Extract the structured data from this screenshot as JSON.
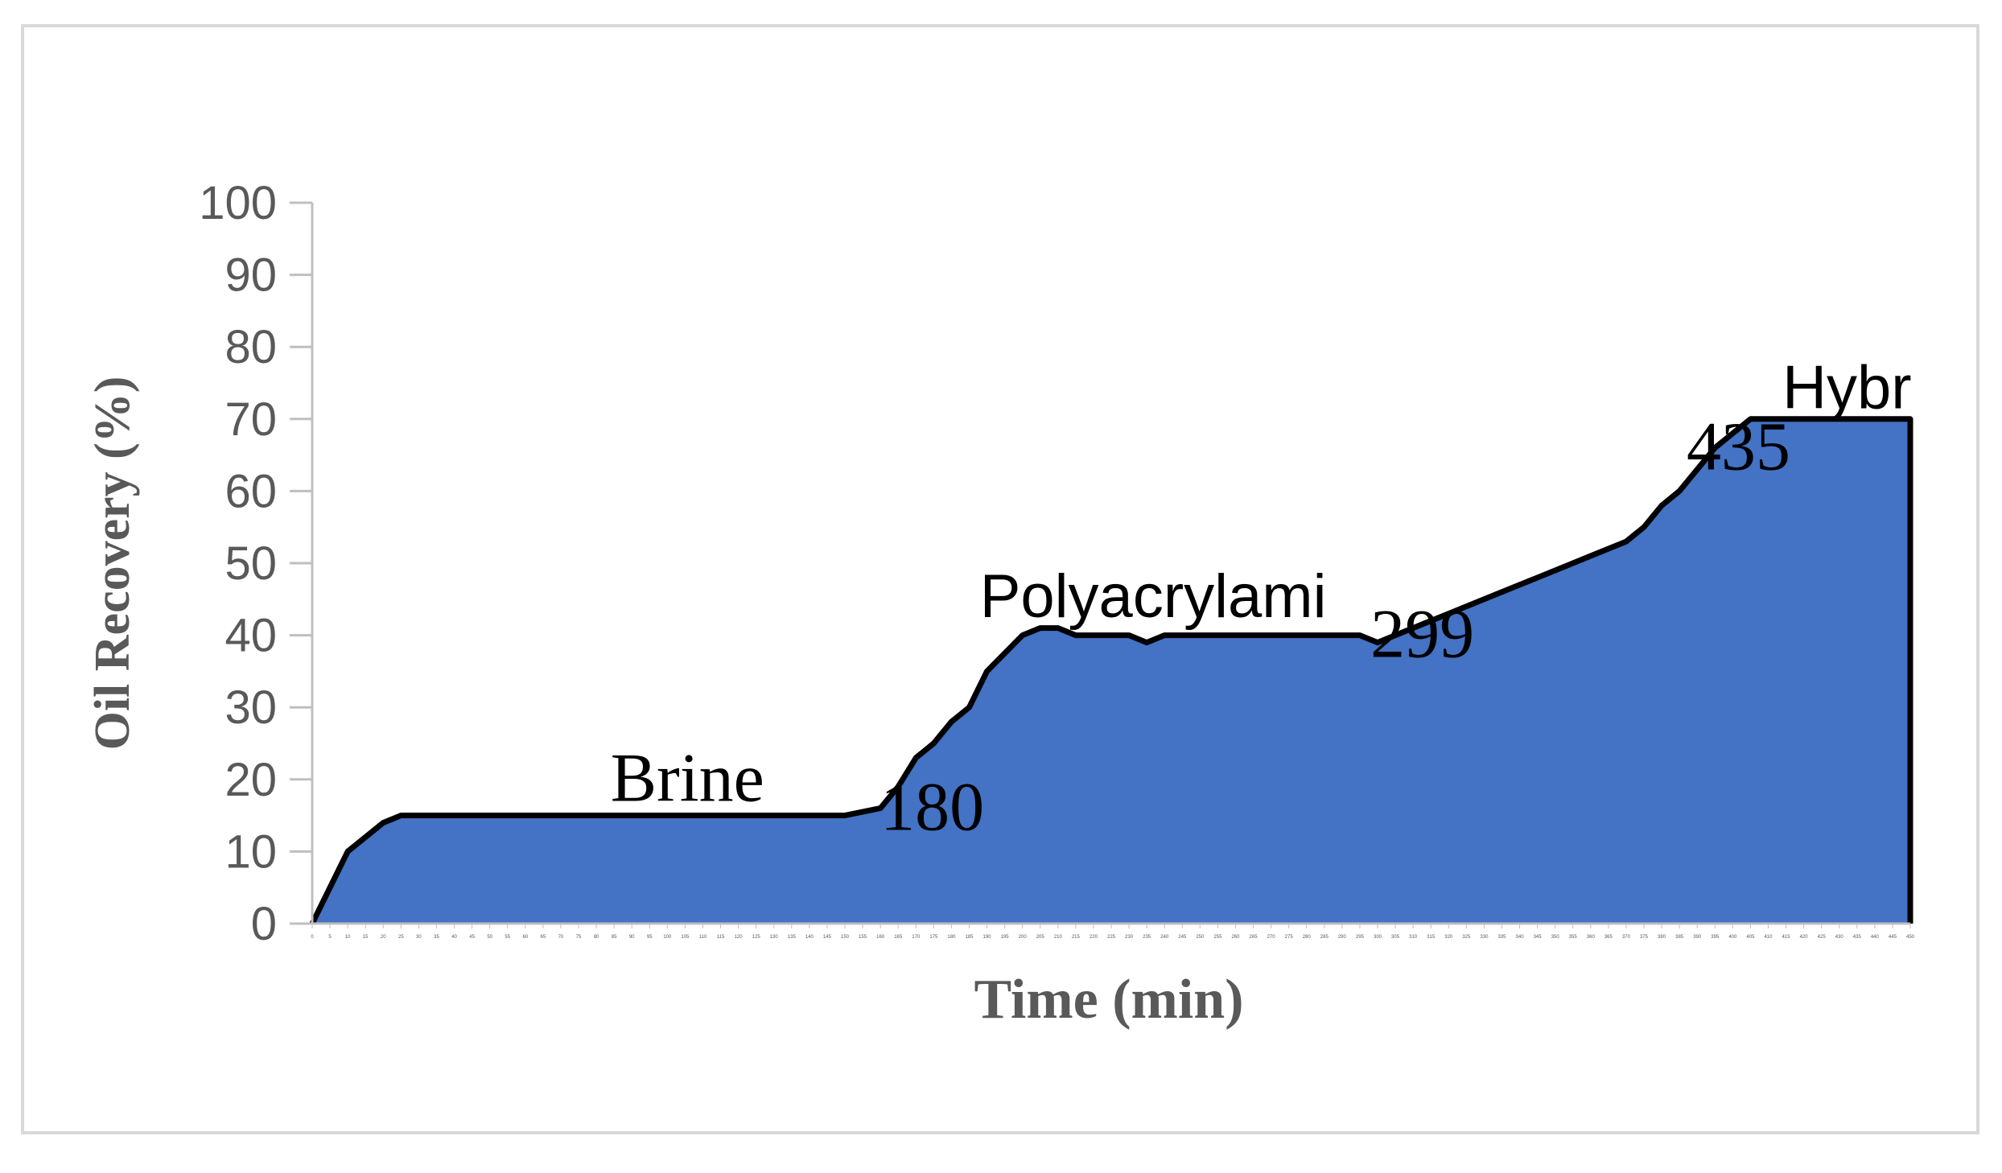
{
  "chart_data": {
    "type": "area",
    "title": "",
    "xlabel": "Time (min)",
    "ylabel": "Oil Recovery (%)",
    "xlim": [
      0,
      450
    ],
    "ylim": [
      0,
      100
    ],
    "yticks": [
      0,
      10,
      20,
      30,
      40,
      50,
      60,
      70,
      80,
      90,
      100
    ],
    "xtick_step": 5,
    "grid": false,
    "legend": "none",
    "colors": {
      "fill": "#4472c4",
      "line": "#000000",
      "axis": "#bfbfbf",
      "text": "#595959"
    },
    "x": [
      0,
      10,
      20,
      25,
      150,
      160,
      165,
      170,
      175,
      180,
      185,
      190,
      200,
      205,
      210,
      215,
      225,
      230,
      235,
      240,
      295,
      300,
      310,
      320,
      330,
      340,
      350,
      360,
      370,
      375,
      380,
      385,
      390,
      395,
      400,
      405,
      410,
      450
    ],
    "values": [
      0,
      10,
      14,
      15,
      15,
      16,
      19,
      23,
      25,
      28,
      30,
      35,
      40,
      41,
      41,
      40,
      40,
      40,
      39,
      40,
      40,
      39,
      41,
      43,
      45,
      47,
      49,
      51,
      53,
      55,
      58,
      60,
      63,
      66,
      68,
      70,
      70,
      70
    ],
    "annotations": [
      {
        "text": "Brine",
        "x": 84,
        "y": 17,
        "style": "serif"
      },
      {
        "text": "180",
        "x": 160,
        "y": 13,
        "style": "serif"
      },
      {
        "text": "Polyacrylami",
        "x": 188,
        "y": 42.5,
        "style": "sans"
      },
      {
        "text": "299",
        "x": 298,
        "y": 37,
        "style": "serif"
      },
      {
        "text": "435",
        "x": 387,
        "y": 63,
        "style": "serif"
      },
      {
        "text": "Hybr",
        "x": 414,
        "y": 71.5,
        "style": "sans"
      }
    ]
  }
}
